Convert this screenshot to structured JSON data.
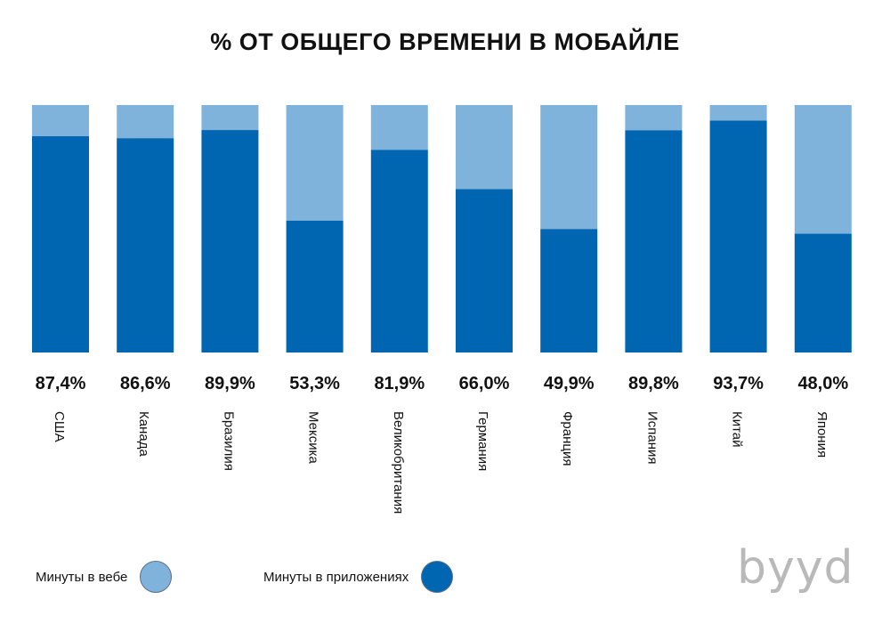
{
  "title": "% ОТ ОБЩЕГО ВРЕМЕНИ В МОБАЙЛЕ",
  "legend": {
    "web_label": "Минуты в вебе",
    "apps_label": "Минуты в приложениях"
  },
  "logo_text": "byyd",
  "colors": {
    "web": "#80b3dc",
    "apps": "#0066b2"
  },
  "chart_data": {
    "type": "bar",
    "stacked": true,
    "title": "% ОТ ОБЩЕГО ВРЕМЕНИ В МОБАЙЛЕ",
    "categories": [
      "США",
      "Канада",
      "Бразилия",
      "Мексика",
      "Великобритания",
      "Германия",
      "Франция",
      "Испания",
      "Китай",
      "Япония"
    ],
    "series": [
      {
        "name": "Минуты в приложениях",
        "values": [
          87.4,
          86.6,
          89.9,
          53.3,
          81.9,
          66.0,
          49.9,
          89.8,
          93.7,
          48.0
        ]
      },
      {
        "name": "Минуты в вебе",
        "values": [
          12.6,
          13.4,
          10.1,
          46.7,
          18.1,
          34.0,
          50.1,
          10.2,
          6.3,
          52.0
        ]
      }
    ],
    "data_labels": [
      "87,4%",
      "86,6%",
      "89,9%",
      "53,3%",
      "81,9%",
      "66,0%",
      "49,9%",
      "89,8%",
      "93,7%",
      "48,0%"
    ],
    "ylim": [
      0,
      100
    ],
    "grid": false,
    "legend_position": "bottom-left"
  }
}
